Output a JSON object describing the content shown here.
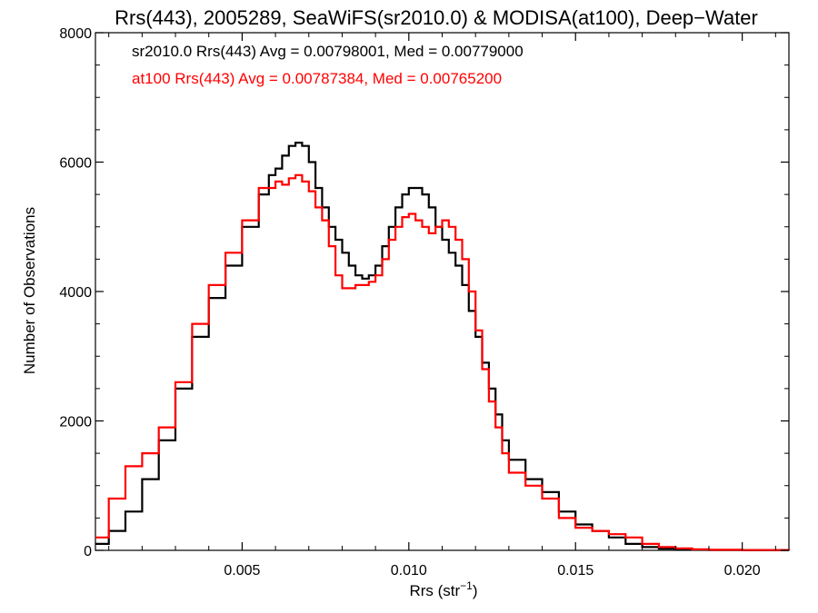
{
  "chart_data": {
    "type": "line",
    "title": "Rrs(443), 2005289, SeaWiFS(sr2010.0) & MODISA(at100), Deep−Water",
    "xlabel_main": "Rrs (str",
    "xlabel_sup": "−1",
    "xlabel_close": ")",
    "ylabel": "Number of Observations",
    "xlim": [
      0.0006,
      0.0214
    ],
    "ylim": [
      0,
      8000
    ],
    "x_ticks": [
      0.005,
      0.01,
      0.015,
      0.02
    ],
    "x_tick_labels": [
      "0.005",
      "0.010",
      "0.015",
      "0.020"
    ],
    "y_ticks": [
      0,
      2000,
      4000,
      6000,
      8000
    ],
    "y_tick_labels": [
      "0",
      "2000",
      "4000",
      "6000",
      "8000"
    ],
    "grid": false,
    "annotations": [
      {
        "text": "sr2010.0 Rrs(443) Avg = 0.00798001, Med = 0.00779000",
        "color": "#000000"
      },
      {
        "text": "at100 Rrs(443) Avg = 0.00787384, Med = 0.00765200",
        "color": "#ff0000"
      }
    ],
    "series": [
      {
        "color": "#000000",
        "x": [
          0.0006,
          0.001,
          0.0015,
          0.002,
          0.0025,
          0.003,
          0.0035,
          0.004,
          0.0045,
          0.005,
          0.0055,
          0.0058,
          0.006,
          0.0062,
          0.0064,
          0.0066,
          0.0068,
          0.007,
          0.0072,
          0.0074,
          0.0076,
          0.0078,
          0.008,
          0.0082,
          0.0084,
          0.0086,
          0.0088,
          0.009,
          0.0092,
          0.0094,
          0.0096,
          0.0098,
          0.01,
          0.0102,
          0.0104,
          0.0106,
          0.0108,
          0.011,
          0.0112,
          0.0114,
          0.0116,
          0.0118,
          0.012,
          0.0122,
          0.0124,
          0.0126,
          0.0128,
          0.013,
          0.0135,
          0.014,
          0.0145,
          0.015,
          0.0155,
          0.016,
          0.0165,
          0.017,
          0.0175,
          0.018,
          0.0185,
          0.019,
          0.02,
          0.0214
        ],
        "y": [
          100,
          300,
          600,
          1100,
          1700,
          2500,
          3300,
          3900,
          4400,
          5000,
          5500,
          5800,
          5900,
          6100,
          6250,
          6300,
          6250,
          6000,
          5600,
          5300,
          5000,
          4800,
          4600,
          4400,
          4250,
          4200,
          4250,
          4400,
          4700,
          5000,
          5300,
          5500,
          5600,
          5600,
          5500,
          5300,
          5000,
          4800,
          4600,
          4400,
          4100,
          3700,
          3300,
          2900,
          2500,
          2100,
          1700,
          1400,
          1100,
          900,
          600,
          400,
          300,
          200,
          100,
          50,
          25,
          15,
          10,
          5,
          2,
          0
        ]
      },
      {
        "color": "#ff0000",
        "x": [
          0.0006,
          0.001,
          0.0015,
          0.002,
          0.0025,
          0.003,
          0.0035,
          0.004,
          0.0045,
          0.005,
          0.0055,
          0.006,
          0.0062,
          0.0064,
          0.0066,
          0.0068,
          0.007,
          0.0072,
          0.0074,
          0.0076,
          0.0078,
          0.008,
          0.0082,
          0.0084,
          0.0086,
          0.0088,
          0.009,
          0.0092,
          0.0094,
          0.0096,
          0.0098,
          0.01,
          0.0102,
          0.0104,
          0.0106,
          0.0108,
          0.011,
          0.0112,
          0.0114,
          0.0116,
          0.0118,
          0.012,
          0.0122,
          0.0124,
          0.0126,
          0.0128,
          0.013,
          0.0135,
          0.014,
          0.0145,
          0.015,
          0.0155,
          0.016,
          0.0165,
          0.017,
          0.0175,
          0.018,
          0.0185,
          0.019,
          0.02,
          0.0214
        ],
        "y": [
          200,
          800,
          1300,
          1500,
          1900,
          2600,
          3500,
          4100,
          4600,
          5100,
          5600,
          5700,
          5650,
          5750,
          5800,
          5700,
          5550,
          5300,
          5100,
          4700,
          4250,
          4050,
          4050,
          4100,
          4100,
          4150,
          4250,
          4500,
          4800,
          5000,
          5150,
          5200,
          5100,
          5000,
          4900,
          5000,
          5100,
          5000,
          4800,
          4500,
          4000,
          3400,
          2800,
          2300,
          1900,
          1500,
          1200,
          1000,
          800,
          500,
          350,
          300,
          250,
          200,
          100,
          50,
          30,
          15,
          8,
          4,
          0
        ]
      }
    ]
  }
}
